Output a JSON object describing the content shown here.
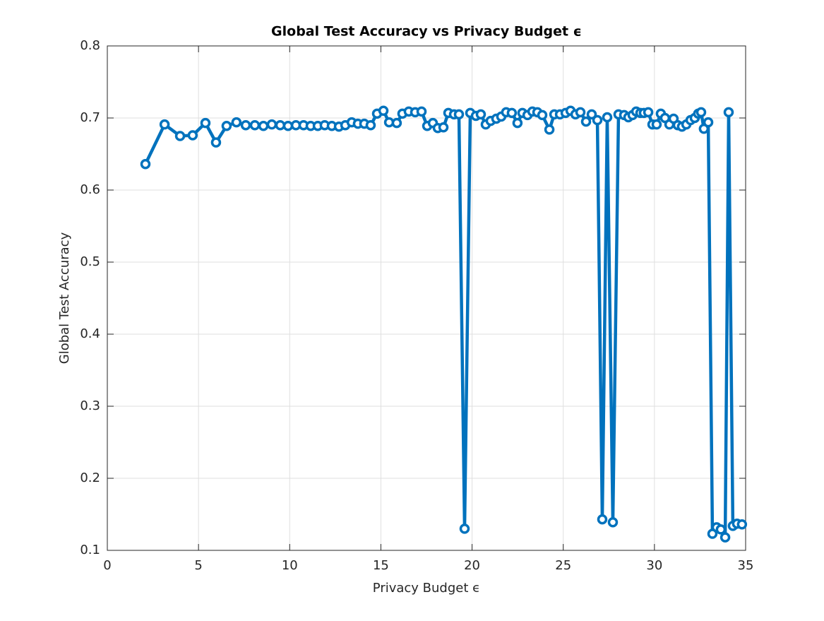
{
  "chart_data": {
    "type": "line",
    "title": "Global Test Accuracy vs Privacy Budget ϵ",
    "x_label": "Privacy Budget ϵ",
    "y_label": "Global Test Accuracy",
    "grid": true,
    "xlim": [
      0,
      35
    ],
    "xticks": [
      0,
      5,
      10,
      15,
      20,
      25,
      30,
      35
    ],
    "ylim": [
      0.1,
      0.8
    ],
    "yticks": [
      0.1,
      0.2,
      0.3,
      0.4,
      0.5,
      0.6,
      0.7,
      0.8
    ],
    "x": [
      2.09,
      3.14,
      3.99,
      4.68,
      5.38,
      5.96,
      6.54,
      7.08,
      7.59,
      8.09,
      8.56,
      9.02,
      9.48,
      9.91,
      10.34,
      10.76,
      11.15,
      11.54,
      11.92,
      12.31,
      12.7,
      13.05,
      13.4,
      13.74,
      14.09,
      14.44,
      14.79,
      15.14,
      15.45,
      15.87,
      16.18,
      16.53,
      16.88,
      17.23,
      17.54,
      17.85,
      18.12,
      18.43,
      18.7,
      19.01,
      19.28,
      19.59,
      19.9,
      20.21,
      20.48,
      20.75,
      21.02,
      21.33,
      21.6,
      21.87,
      22.18,
      22.49,
      22.76,
      23.04,
      23.31,
      23.58,
      23.85,
      24.24,
      24.51,
      24.82,
      25.13,
      25.4,
      25.67,
      25.94,
      26.25,
      26.56,
      26.87,
      27.14,
      27.41,
      27.72,
      28.03,
      28.34,
      28.57,
      28.8,
      29.0,
      29.23,
      29.42,
      29.66,
      29.89,
      30.12,
      30.35,
      30.58,
      30.82,
      31.05,
      31.28,
      31.51,
      31.75,
      31.98,
      32.21,
      32.4,
      32.56,
      32.71,
      32.95,
      33.18,
      33.41,
      33.64,
      33.88,
      34.07,
      34.3,
      34.53,
      34.8
    ],
    "series": [
      {
        "color": "#0072bd",
        "values": [
          0.636,
          0.691,
          0.675,
          0.676,
          0.693,
          0.666,
          0.689,
          0.694,
          0.69,
          0.69,
          0.689,
          0.691,
          0.69,
          0.689,
          0.69,
          0.69,
          0.689,
          0.689,
          0.69,
          0.689,
          0.688,
          0.69,
          0.694,
          0.692,
          0.692,
          0.69,
          0.706,
          0.71,
          0.694,
          0.693,
          0.706,
          0.709,
          0.708,
          0.709,
          0.689,
          0.693,
          0.686,
          0.687,
          0.707,
          0.705,
          0.705,
          0.13,
          0.707,
          0.703,
          0.705,
          0.691,
          0.696,
          0.699,
          0.702,
          0.708,
          0.707,
          0.693,
          0.707,
          0.704,
          0.709,
          0.708,
          0.704,
          0.684,
          0.705,
          0.705,
          0.707,
          0.71,
          0.705,
          0.708,
          0.695,
          0.705,
          0.697,
          0.143,
          0.701,
          0.139,
          0.705,
          0.704,
          0.701,
          0.704,
          0.709,
          0.707,
          0.707,
          0.708,
          0.691,
          0.691,
          0.706,
          0.7,
          0.691,
          0.699,
          0.69,
          0.688,
          0.691,
          0.697,
          0.7,
          0.706,
          0.708,
          0.685,
          0.694,
          0.123,
          0.132,
          0.129,
          0.118,
          0.708,
          0.134,
          0.137,
          0.136
        ]
      }
    ]
  }
}
